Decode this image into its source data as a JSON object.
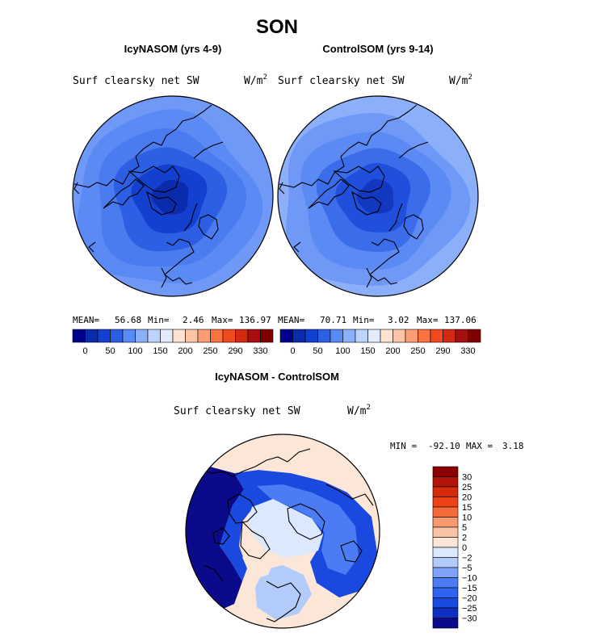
{
  "chart_data": [
    {
      "type": "heatmap",
      "projection": "polar stereographic (north pole)",
      "title": "IcyNASOM (yrs 4-9)",
      "subtitle": "Surf clearsky net SW",
      "units_prefix": "W/m",
      "units_exp": "2",
      "mean_label": "MEAN=",
      "mean": "56.68",
      "min_label": "Min=",
      "min": "2.46",
      "max_label": "Max=",
      "max": "136.97",
      "levels": [
        0,
        25,
        50,
        75,
        100,
        125,
        150,
        175,
        200,
        225,
        250,
        270,
        290,
        310,
        330
      ],
      "colorbar_ticks": [
        "0",
        "50",
        "100",
        "150",
        "200",
        "250",
        "290",
        "330"
      ],
      "rings": [
        {
          "lat": 40,
          "color": "#5b8af5"
        },
        {
          "lat": 50,
          "color": "#4a7bef"
        },
        {
          "lat": 60,
          "color": "#2d5fe5"
        },
        {
          "lat": 70,
          "color": "#1440cf"
        },
        {
          "lat": 80,
          "color": "#0a2bab"
        }
      ]
    },
    {
      "type": "heatmap",
      "projection": "polar stereographic (north pole)",
      "title": "ControlSOM (yrs 9-14)",
      "subtitle": "Surf clearsky net SW",
      "units_prefix": "W/m",
      "units_exp": "2",
      "mean_label": "MEAN=",
      "mean": "70.71",
      "min_label": "Min=",
      "min": "3.02",
      "max_label": "Max=",
      "max": "137.06",
      "levels": [
        0,
        25,
        50,
        75,
        100,
        125,
        150,
        175,
        200,
        225,
        250,
        270,
        290,
        310,
        330
      ],
      "colorbar_ticks": [
        "0",
        "50",
        "100",
        "150",
        "200",
        "250",
        "290",
        "330"
      ],
      "rings": [
        {
          "lat": 40,
          "color": "#6f98f7"
        },
        {
          "lat": 50,
          "color": "#5b8af5"
        },
        {
          "lat": 60,
          "color": "#3b6deb"
        },
        {
          "lat": 70,
          "color": "#1f4fdb"
        },
        {
          "lat": 80,
          "color": "#1238c2"
        }
      ]
    },
    {
      "type": "heatmap",
      "projection": "polar stereographic (north pole)",
      "title": "IcyNASOM - ControlSOM",
      "subtitle": "Surf clearsky net SW",
      "units_prefix": "W/m",
      "units_exp": "2",
      "min_label": "MIN =",
      "min": "-92.10",
      "max_label": "MAX =",
      "max": "3.18",
      "levels": [
        -30,
        -25,
        -20,
        -15,
        -10,
        -5,
        -2,
        0,
        2,
        5,
        10,
        15,
        20,
        25,
        30
      ],
      "colorbar_ticks": [
        "30",
        "25",
        "20",
        "15",
        "10",
        "5",
        "2",
        "0",
        "−2",
        "−5",
        "−10",
        "−15",
        "−20",
        "−25",
        "−30"
      ]
    }
  ],
  "figure": {
    "title": "SON"
  },
  "palettes": {
    "abs": [
      "#00008b",
      "#0a2bab",
      "#1440cf",
      "#2d5fe5",
      "#5b8af5",
      "#8bb0f9",
      "#bcd3fc",
      "#e2ecfd",
      "#fde2d0",
      "#fcc3a5",
      "#fb9e75",
      "#f8733f",
      "#f24a1e",
      "#d42a12",
      "#a80f0f",
      "#800000"
    ],
    "diff": [
      "#0a0a8a",
      "#0f2fc0",
      "#1a49e0",
      "#2f62f0",
      "#4c7cf4",
      "#7ea2f7",
      "#b3cbfb",
      "#dce8fd",
      "#fbe6d8",
      "#f9c3a5",
      "#f79a70",
      "#f56a3c",
      "#ee4317",
      "#d52a0c",
      "#b11408",
      "#8b0000"
    ]
  }
}
